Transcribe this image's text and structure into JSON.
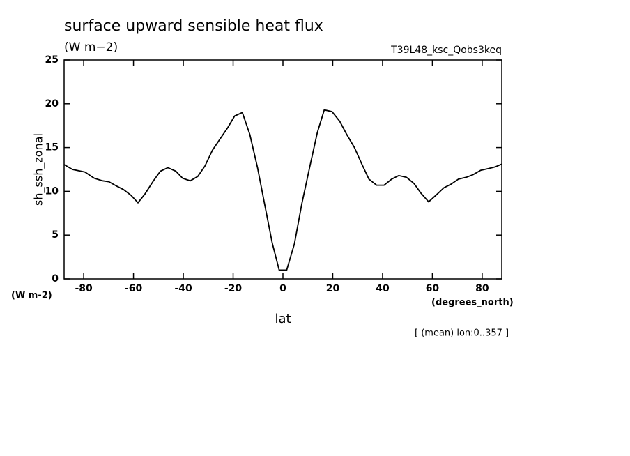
{
  "chart_data": {
    "type": "line",
    "title": "surface upward sensible heat flux",
    "subtitle": "(W m−2)",
    "dataset": "T39L48_ksc_Qobs3keq",
    "ylabel": "sh_ssh_zonal",
    "yunits": "(W m-2)",
    "xlabel": "lat",
    "xunits": "(degrees_north)",
    "note": "[ (mean) lon:0..357 ]",
    "xlim": [
      -87.86,
      87.86
    ],
    "ylim": [
      0,
      25
    ],
    "xticks": [
      -80,
      -60,
      -40,
      -20,
      0,
      20,
      40,
      60,
      80
    ],
    "yticks": [
      0,
      5,
      10,
      15,
      20,
      25
    ],
    "series": [
      {
        "name": "sh_ssh_zonal",
        "color": "#000000",
        "x": [
          -87.8,
          -84.5,
          -79.5,
          -75.8,
          -72.4,
          -69.9,
          -66.8,
          -64.0,
          -61.0,
          -58.2,
          -55.4,
          -52.0,
          -49.2,
          -46.2,
          -43.0,
          -40.3,
          -37.2,
          -34.2,
          -31.3,
          -28.3,
          -25.2,
          -22.1,
          -19.4,
          -16.3,
          -13.3,
          -10.2,
          -7.4,
          -4.3,
          -1.5,
          1.5,
          4.6,
          7.6,
          10.7,
          13.8,
          16.6,
          19.7,
          22.8,
          25.6,
          28.7,
          31.7,
          34.5,
          37.6,
          40.6,
          43.7,
          46.5,
          49.6,
          52.6,
          55.4,
          58.5,
          61.6,
          64.6,
          67.4,
          70.5,
          73.6,
          76.3,
          79.4,
          82.5,
          85.3,
          87.8
        ],
        "values": [
          13.05,
          12.5,
          12.2,
          11.5,
          11.2,
          11.1,
          10.6,
          10.2,
          9.55,
          8.7,
          9.7,
          11.2,
          12.3,
          12.7,
          12.3,
          11.5,
          11.2,
          11.7,
          12.9,
          14.7,
          16.0,
          17.3,
          18.6,
          19.0,
          16.5,
          12.7,
          8.6,
          4.1,
          1.0,
          1.0,
          4.0,
          8.6,
          12.7,
          16.7,
          19.3,
          19.1,
          18.0,
          16.5,
          15.0,
          13.1,
          11.4,
          10.7,
          10.7,
          11.4,
          11.8,
          11.6,
          10.9,
          9.8,
          8.8,
          9.6,
          10.4,
          10.8,
          11.4,
          11.6,
          11.9,
          12.4,
          12.6,
          12.8,
          13.1
        ]
      }
    ]
  }
}
